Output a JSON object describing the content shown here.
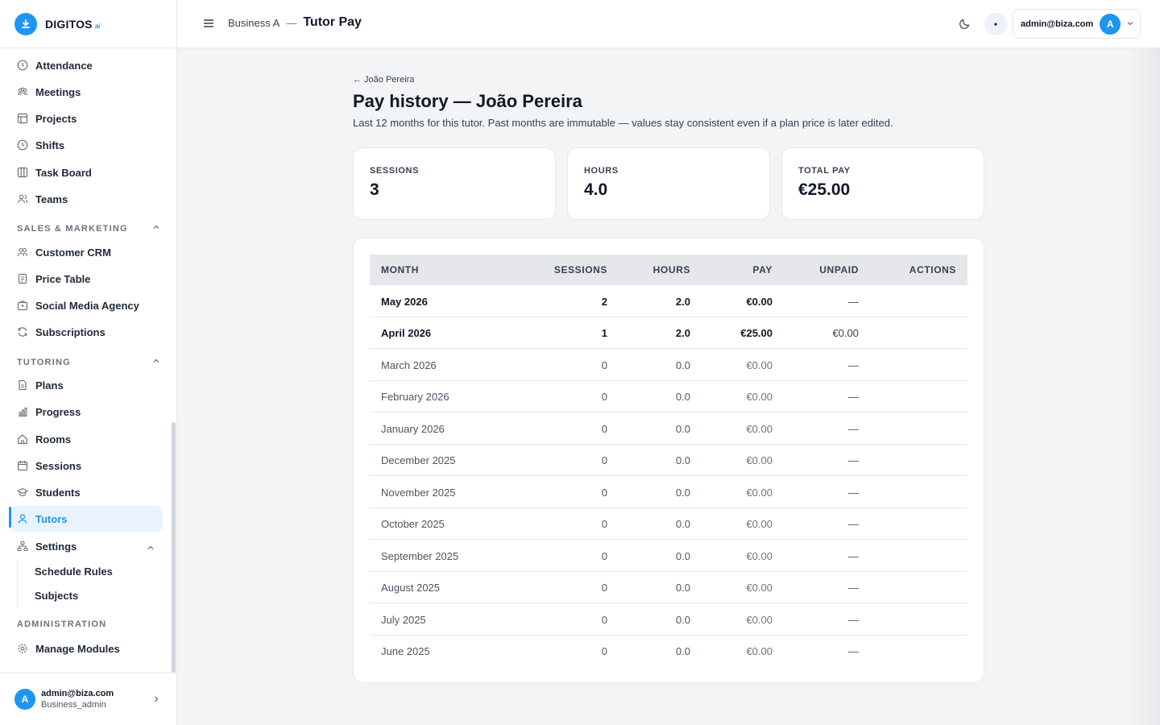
{
  "brand": {
    "name": "DIGITOS",
    "sup": "ai"
  },
  "sidebar": {
    "items_top": [
      {
        "label": "Attendance",
        "icon": "clock-icon"
      },
      {
        "label": "Meetings",
        "icon": "users-group-icon"
      },
      {
        "label": "Projects",
        "icon": "layout-icon"
      },
      {
        "label": "Shifts",
        "icon": "clock-icon"
      },
      {
        "label": "Task Board",
        "icon": "columns-icon"
      },
      {
        "label": "Teams",
        "icon": "users-icon"
      }
    ],
    "sales_label": "SALES & MARKETING",
    "items_sales": [
      {
        "label": "Customer CRM",
        "icon": "contacts-icon"
      },
      {
        "label": "Price Table",
        "icon": "document-icon"
      },
      {
        "label": "Social Media Agency",
        "icon": "briefcase-icon"
      },
      {
        "label": "Subscriptions",
        "icon": "refresh-icon"
      }
    ],
    "tutoring_label": "TUTORING",
    "items_tutoring": [
      {
        "label": "Plans",
        "icon": "document-icon"
      },
      {
        "label": "Progress",
        "icon": "bar-chart-icon"
      },
      {
        "label": "Rooms",
        "icon": "home-icon"
      },
      {
        "label": "Sessions",
        "icon": "calendar-icon"
      },
      {
        "label": "Students",
        "icon": "graduation-cap-icon"
      },
      {
        "label": "Tutors",
        "icon": "user-icon"
      },
      {
        "label": "Settings",
        "icon": "sitemap-icon"
      }
    ],
    "settings_sub": [
      "Schedule Rules",
      "Subjects"
    ],
    "admin_label": "ADMINISTRATION",
    "items_admin": [
      {
        "label": "Manage Modules",
        "icon": "gear-icon"
      }
    ],
    "user": {
      "email": "admin@biza.com",
      "role": "Business_admin",
      "initial": "A"
    }
  },
  "topbar": {
    "business": "Business A",
    "separator": "—",
    "title": "Tutor Pay",
    "account_email": "admin@biza.com",
    "account_initial": "A",
    "spark": "✦"
  },
  "page": {
    "back": "← João Pereira",
    "title": "Pay history — João Pereira",
    "description": "Last 12 months for this tutor. Past months are immutable — values stay consistent even if a plan price is later edited."
  },
  "stats": [
    {
      "label": "SESSIONS",
      "value": "3"
    },
    {
      "label": "HOURS",
      "value": "4.0"
    },
    {
      "label": "TOTAL PAY",
      "value": "€25.00"
    }
  ],
  "table": {
    "headers": [
      "MONTH",
      "SESSIONS",
      "HOURS",
      "PAY",
      "UNPAID",
      "ACTIONS"
    ],
    "rows": [
      {
        "month": "May 2026",
        "sessions": "2",
        "hours": "2.0",
        "pay": "€0.00",
        "unpaid": "—"
      },
      {
        "month": "April 2026",
        "sessions": "1",
        "hours": "2.0",
        "pay": "€25.00",
        "unpaid": "€0.00"
      },
      {
        "month": "March 2026",
        "sessions": "0",
        "hours": "0.0",
        "pay": "€0.00",
        "unpaid": "—"
      },
      {
        "month": "February 2026",
        "sessions": "0",
        "hours": "0.0",
        "pay": "€0.00",
        "unpaid": "—"
      },
      {
        "month": "January 2026",
        "sessions": "0",
        "hours": "0.0",
        "pay": "€0.00",
        "unpaid": "—"
      },
      {
        "month": "December 2025",
        "sessions": "0",
        "hours": "0.0",
        "pay": "€0.00",
        "unpaid": "—"
      },
      {
        "month": "November 2025",
        "sessions": "0",
        "hours": "0.0",
        "pay": "€0.00",
        "unpaid": "—"
      },
      {
        "month": "October 2025",
        "sessions": "0",
        "hours": "0.0",
        "pay": "€0.00",
        "unpaid": "—"
      },
      {
        "month": "September 2025",
        "sessions": "0",
        "hours": "0.0",
        "pay": "€0.00",
        "unpaid": "—"
      },
      {
        "month": "August 2025",
        "sessions": "0",
        "hours": "0.0",
        "pay": "€0.00",
        "unpaid": "—"
      },
      {
        "month": "July 2025",
        "sessions": "0",
        "hours": "0.0",
        "pay": "€0.00",
        "unpaid": "—"
      },
      {
        "month": "June 2025",
        "sessions": "0",
        "hours": "0.0",
        "pay": "€0.00",
        "unpaid": "—"
      }
    ]
  },
  "colors": {
    "accent": "#1e96f0",
    "active_bg": "#e8f3fd",
    "header_bg": "#e5e7eb"
  }
}
